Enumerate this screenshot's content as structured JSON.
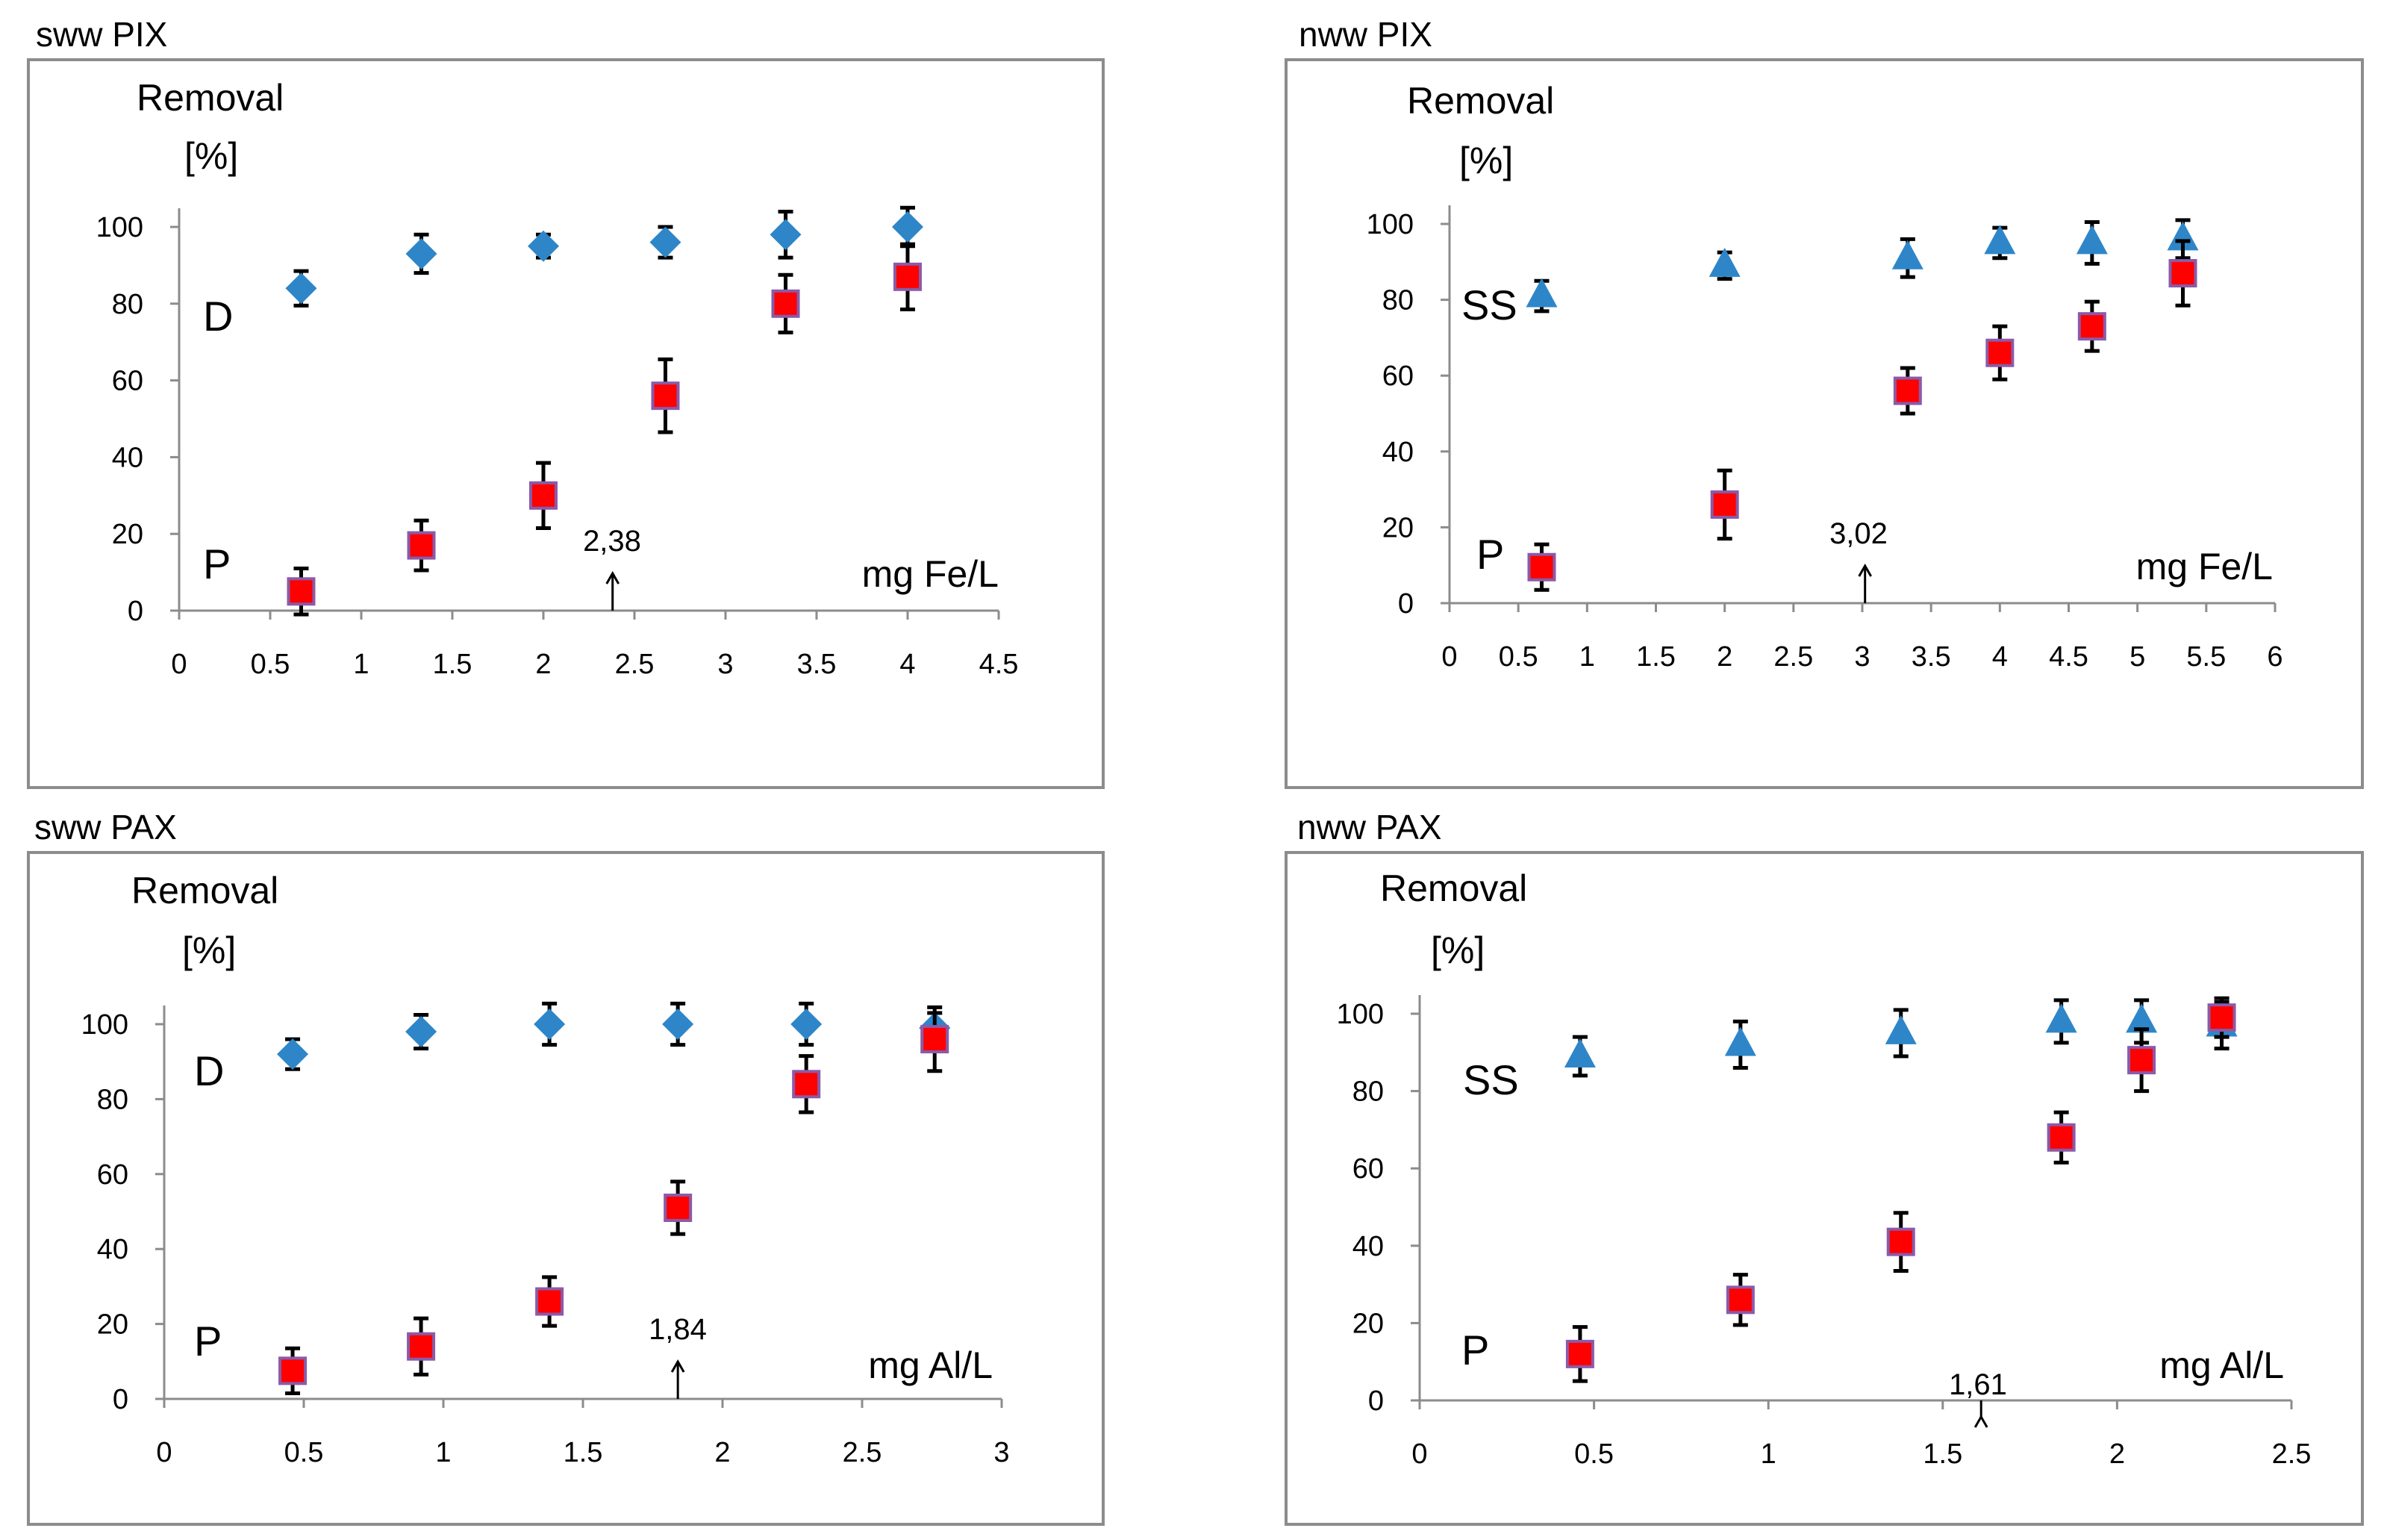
{
  "colors": {
    "P": "#ff0000",
    "P_border": "#8b5aa8",
    "D": "#2e86c8",
    "SS": "#2e86c8"
  },
  "chart_data": [
    {
      "type": "scatter",
      "panel_title": "sww PIX",
      "ylabel": "Removal",
      "yunit": "[%]",
      "xlabel": "mg Fe/L",
      "xlim": [
        0,
        4.5
      ],
      "ylim": [
        0,
        100
      ],
      "xticks": [
        "0",
        "0.5",
        "1",
        "1.5",
        "2",
        "2.5",
        "3",
        "3.5",
        "4",
        "4.5"
      ],
      "yticks": [
        "0",
        "20",
        "40",
        "60",
        "80",
        "100"
      ],
      "annotation": {
        "text": "2,38",
        "x": 2.38
      },
      "series": [
        {
          "name": "D",
          "marker": "diamond",
          "x": [
            0.67,
            1.33,
            2.0,
            2.67,
            3.33,
            4.0
          ],
          "y": [
            84,
            93,
            95,
            96,
            98,
            100
          ],
          "err": [
            4.5,
            5,
            3,
            4,
            6,
            5
          ]
        },
        {
          "name": "P",
          "marker": "square",
          "x": [
            0.67,
            1.33,
            2.0,
            2.67,
            3.33,
            4.0
          ],
          "y": [
            5,
            17,
            30,
            56,
            80,
            87
          ],
          "err": [
            6,
            6.5,
            8.5,
            9.5,
            7.5,
            8.5
          ]
        }
      ]
    },
    {
      "type": "scatter",
      "panel_title": "nww PIX",
      "ylabel": "Removal",
      "yunit": "[%]",
      "xlabel": "mg Fe/L",
      "xlim": [
        0,
        6
      ],
      "ylim": [
        0,
        100
      ],
      "xticks": [
        "0",
        "0.5",
        "1",
        "1.5",
        "2",
        "2.5",
        "3",
        "3.5",
        "4",
        "4.5",
        "5",
        "5.5",
        "6"
      ],
      "yticks": [
        "0",
        "20",
        "40",
        "60",
        "80",
        "100"
      ],
      "annotation": {
        "text": "3,02",
        "x": 3.02
      },
      "series": [
        {
          "name": "SS",
          "marker": "triangle",
          "x": [
            0.67,
            2.0,
            3.33,
            4.0,
            4.67,
            5.33
          ],
          "y": [
            81,
            89,
            91,
            95,
            95,
            96
          ],
          "err": [
            4,
            3.5,
            5,
            4,
            5.5,
            5
          ]
        },
        {
          "name": "P",
          "marker": "square",
          "x": [
            0.67,
            2.0,
            3.33,
            4.0,
            4.67,
            5.33
          ],
          "y": [
            9.5,
            26,
            56,
            66,
            73,
            87
          ],
          "err": [
            6,
            9,
            6,
            7,
            6.5,
            8.5
          ]
        }
      ]
    },
    {
      "type": "scatter",
      "panel_title": "sww PAX",
      "ylabel": "Removal",
      "yunit": "[%]",
      "xlabel": "mg Al/L",
      "xlim": [
        0,
        3
      ],
      "ylim": [
        0,
        100
      ],
      "xticks": [
        "0",
        "0.5",
        "1",
        "1.5",
        "2",
        "2.5",
        "3"
      ],
      "yticks": [
        "0",
        "20",
        "40",
        "60",
        "80",
        "100"
      ],
      "annotation": {
        "text": "1,84",
        "x": 1.84
      },
      "series": [
        {
          "name": "D",
          "marker": "diamond",
          "x": [
            0.46,
            0.92,
            1.38,
            1.84,
            2.3,
            2.76
          ],
          "y": [
            92,
            98,
            100,
            100,
            100,
            99
          ],
          "err": [
            4,
            4.5,
            5.5,
            5.5,
            5.5,
            4
          ]
        },
        {
          "name": "P",
          "marker": "square",
          "x": [
            0.46,
            0.92,
            1.38,
            1.84,
            2.3,
            2.76
          ],
          "y": [
            7.5,
            14,
            26,
            51,
            84,
            96
          ],
          "err": [
            6,
            7.5,
            6.5,
            7,
            7.5,
            8.5
          ]
        }
      ]
    },
    {
      "type": "scatter",
      "panel_title": "nww PAX",
      "ylabel": "Removal",
      "yunit": "[%]",
      "xlabel": "mg Al/L",
      "xlim": [
        0,
        2.5
      ],
      "ylim": [
        0,
        100
      ],
      "xticks": [
        "0",
        "0.5",
        "1",
        "1.5",
        "2",
        "2.5"
      ],
      "yticks": [
        "0",
        "20",
        "40",
        "60",
        "80",
        "100"
      ],
      "annotation": {
        "text": "1,61",
        "x": 1.61
      },
      "series": [
        {
          "name": "SS",
          "marker": "triangle",
          "x": [
            0.46,
            0.92,
            1.38,
            1.84,
            2.07,
            2.3
          ],
          "y": [
            89,
            92,
            95,
            98,
            98,
            97
          ],
          "err": [
            5,
            6,
            6,
            5.5,
            5.5,
            6
          ]
        },
        {
          "name": "P",
          "marker": "square",
          "x": [
            0.46,
            0.92,
            1.38,
            1.84,
            2.07,
            2.3
          ],
          "y": [
            12,
            26,
            41,
            68,
            88,
            99
          ],
          "err": [
            7,
            6.5,
            7.5,
            6.5,
            8,
            5
          ]
        }
      ]
    }
  ]
}
